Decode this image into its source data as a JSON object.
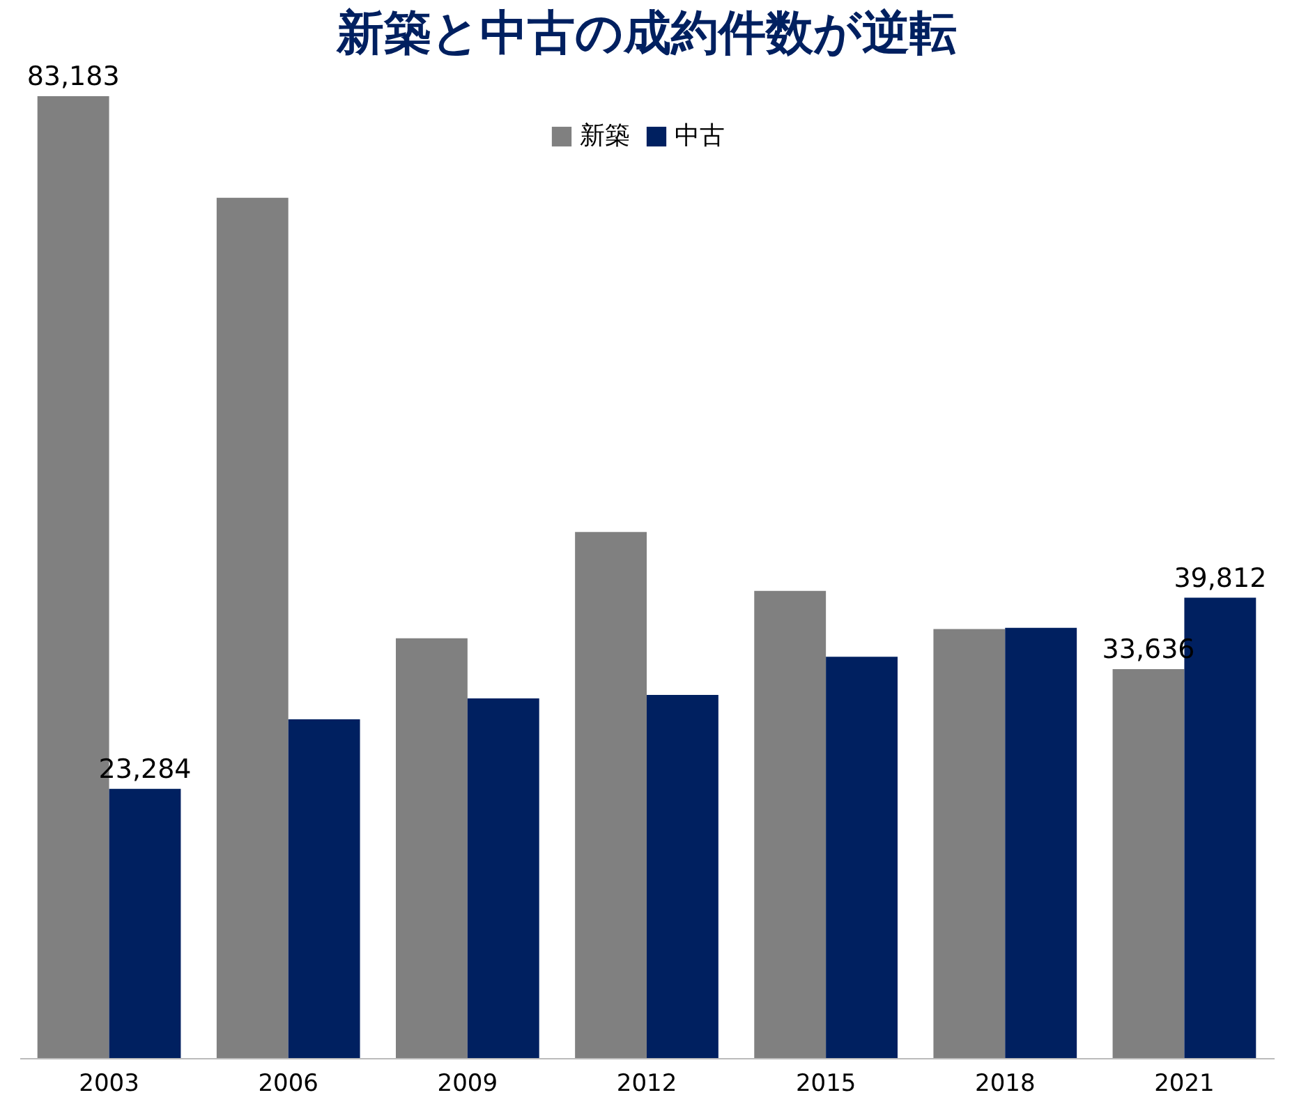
{
  "chart_data": {
    "type": "bar",
    "title": "新築と中古の成約件数が逆転",
    "categories": [
      "2003",
      "2006",
      "2009",
      "2012",
      "2015",
      "2018",
      "2021"
    ],
    "series": [
      {
        "name": "新築",
        "color": "#808080",
        "values": [
          83183,
          74400,
          36300,
          45500,
          40400,
          37100,
          33636
        ],
        "value_labels": [
          "83,183",
          null,
          null,
          null,
          null,
          null,
          "33,636"
        ]
      },
      {
        "name": "中古",
        "color": "#002060",
        "values": [
          23284,
          29300,
          31100,
          31400,
          34700,
          37200,
          39812
        ],
        "value_labels": [
          "23,284",
          null,
          null,
          null,
          null,
          null,
          "39,812"
        ]
      }
    ],
    "legend": "top",
    "grid": false
  }
}
